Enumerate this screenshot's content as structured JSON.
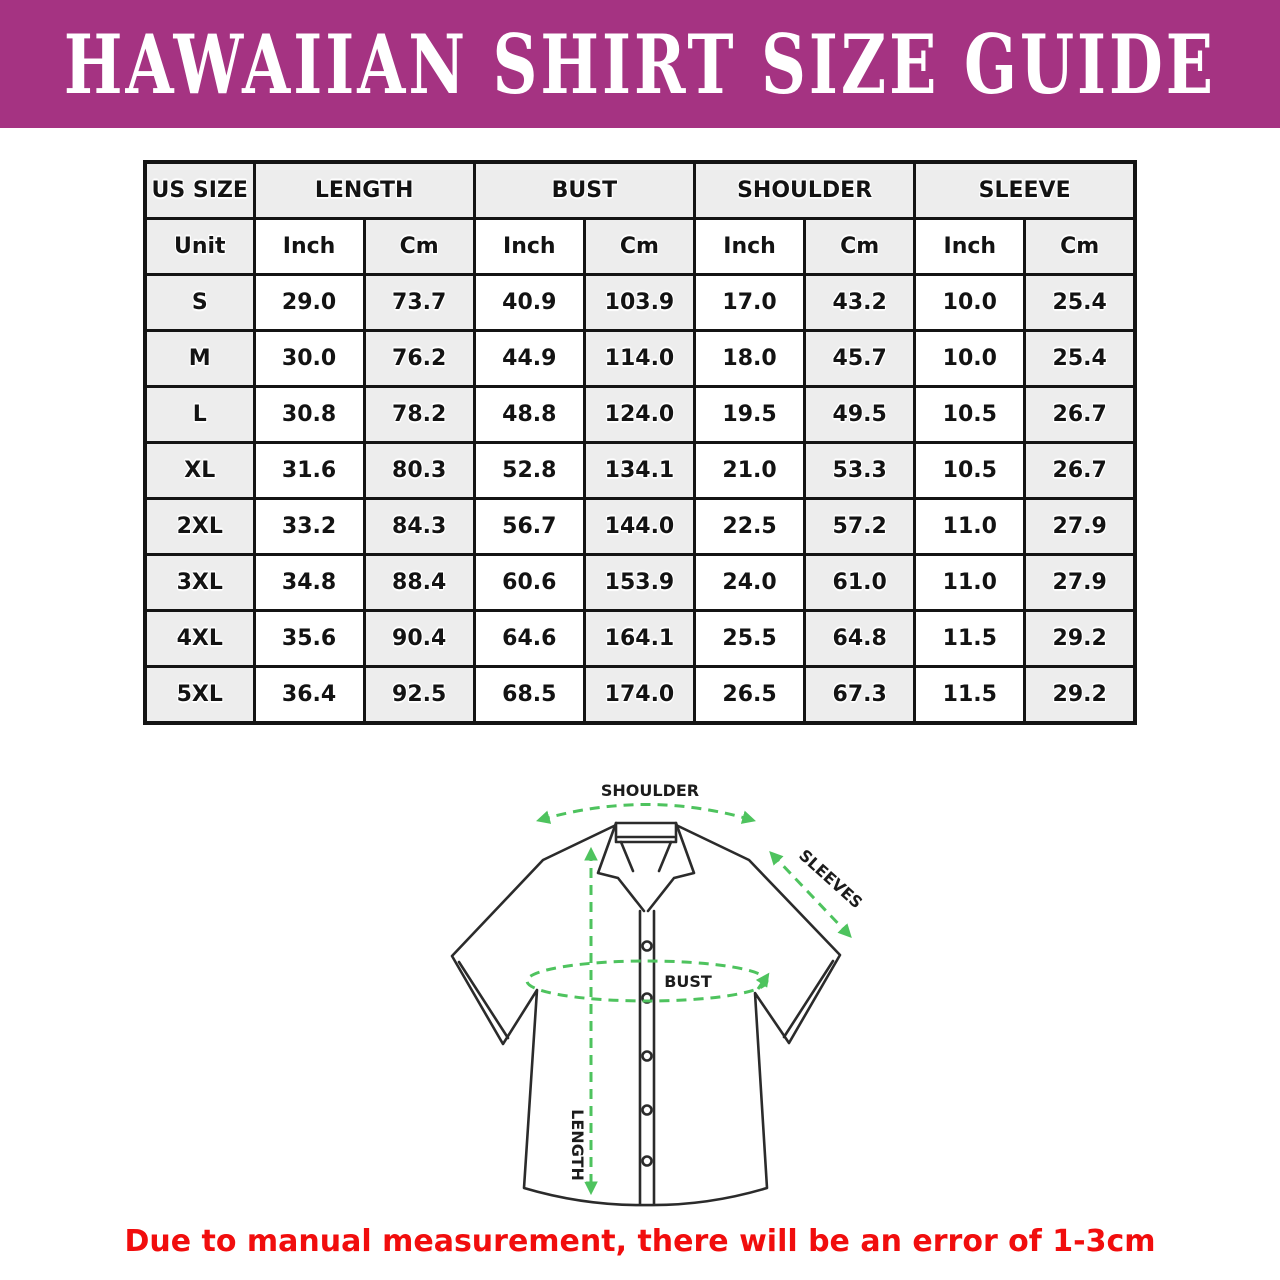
{
  "banner": {
    "title": "HAWAIIAN SHIRT SIZE GUIDE"
  },
  "table": {
    "group_headers": [
      {
        "label": "US SIZE",
        "span": 1
      },
      {
        "label": "LENGTH",
        "span": 2
      },
      {
        "label": "BUST",
        "span": 2
      },
      {
        "label": "SHOULDER",
        "span": 2
      },
      {
        "label": "SLEEVE",
        "span": 2
      }
    ],
    "unit_row": [
      "Unit",
      "Inch",
      "Cm",
      "Inch",
      "Cm",
      "Inch",
      "Cm",
      "Inch",
      "Cm"
    ],
    "rows": [
      [
        "S",
        "29.0",
        "73.7",
        "40.9",
        "103.9",
        "17.0",
        "43.2",
        "10.0",
        "25.4"
      ],
      [
        "M",
        "30.0",
        "76.2",
        "44.9",
        "114.0",
        "18.0",
        "45.7",
        "10.0",
        "25.4"
      ],
      [
        "L",
        "30.8",
        "78.2",
        "48.8",
        "124.0",
        "19.5",
        "49.5",
        "10.5",
        "26.7"
      ],
      [
        "XL",
        "31.6",
        "80.3",
        "52.8",
        "134.1",
        "21.0",
        "53.3",
        "10.5",
        "26.7"
      ],
      [
        "2XL",
        "33.2",
        "84.3",
        "56.7",
        "144.0",
        "22.5",
        "57.2",
        "11.0",
        "27.9"
      ],
      [
        "3XL",
        "34.8",
        "88.4",
        "60.6",
        "153.9",
        "24.0",
        "61.0",
        "11.0",
        "27.9"
      ],
      [
        "4XL",
        "35.6",
        "90.4",
        "64.6",
        "164.1",
        "25.5",
        "64.8",
        "11.5",
        "29.2"
      ],
      [
        "5XL",
        "36.4",
        "92.5",
        "68.5",
        "174.0",
        "26.5",
        "67.3",
        "11.5",
        "29.2"
      ]
    ]
  },
  "diagram": {
    "labels": {
      "shoulder": "SHOULDER",
      "sleeves": "SLEEVES",
      "bust": "BUST",
      "length": "LENGTH"
    }
  },
  "footnote": {
    "text": "Due to manual measurement, there will be an error of 1-3cm"
  },
  "colors": {
    "banner_background": "#a53382",
    "measure_arrow_green": "#4ec35e",
    "table_shade_gray": "#ededed",
    "footnote_red": "#f10d0d",
    "title_text": "#ffffff",
    "table_border": "#141414"
  }
}
